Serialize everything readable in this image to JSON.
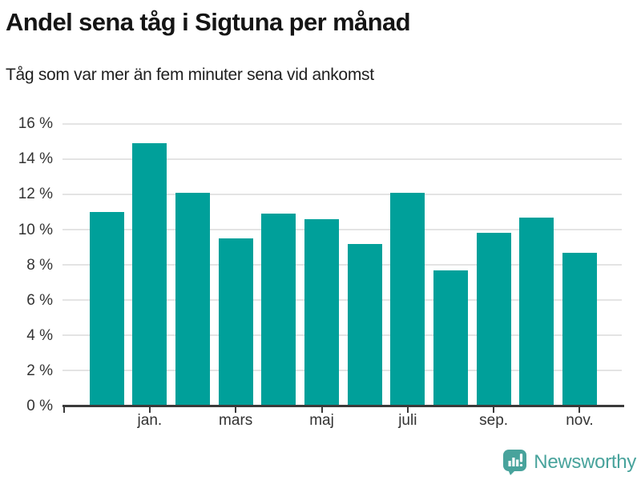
{
  "chart_data": {
    "type": "bar",
    "title": "Andel sena tåg i Sigtuna per månad",
    "subtitle": "Tåg som var mer än fem minuter sena vid ankomst",
    "categories": [
      "",
      "jan.",
      "",
      "mars",
      "",
      "maj",
      "",
      "juli",
      "",
      "sep.",
      "",
      "nov."
    ],
    "values": [
      11.0,
      14.9,
      12.1,
      9.5,
      10.9,
      10.6,
      9.2,
      12.1,
      7.7,
      9.8,
      10.7,
      8.7
    ],
    "ylim": [
      0,
      16
    ],
    "ytick_step": 2,
    "ytick_suffix": " %",
    "xlabel": "",
    "ylabel": "",
    "grid": true,
    "legend": "none",
    "bar_color": "#00a09a"
  },
  "colors": {
    "bar": "#00a09a",
    "grid": "#e4e4e4",
    "axis": "#3a3a3a",
    "axis_text": "#333333",
    "title_text": "#151515",
    "brand": "#48a39c"
  },
  "branding": {
    "wordmark": "Newsworthy",
    "icon": "newsworthy-chart-bubble-icon"
  }
}
